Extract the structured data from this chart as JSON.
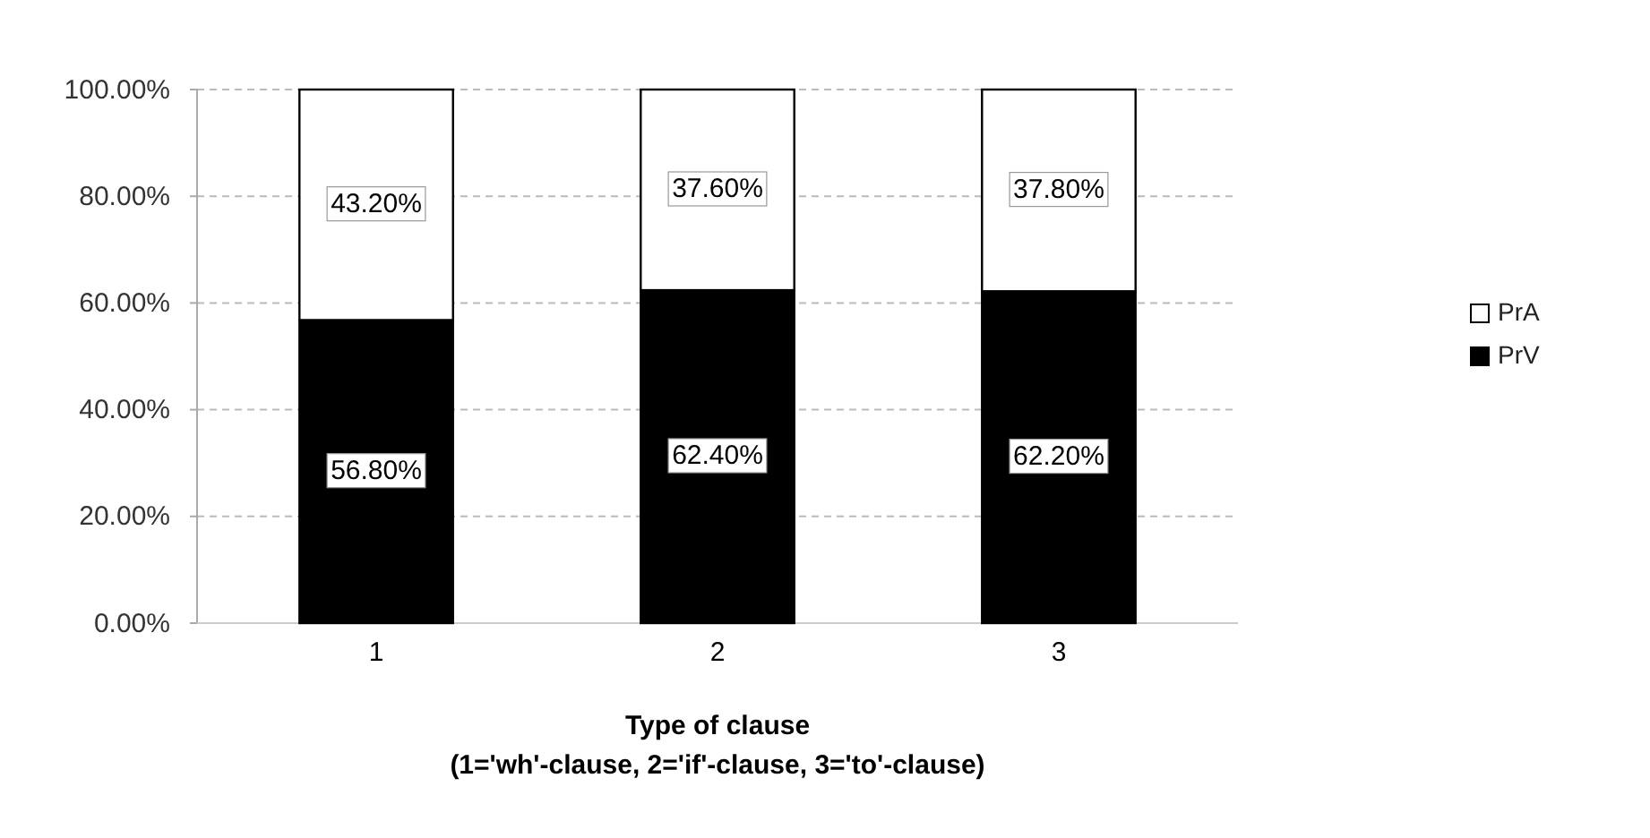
{
  "chart_data": {
    "type": "bar",
    "stacked": true,
    "categories": [
      "1",
      "2",
      "3"
    ],
    "series": [
      {
        "name": "PrV",
        "color": "#000000",
        "values": [
          56.8,
          62.4,
          62.2
        ],
        "value_labels": [
          "56.80%",
          "62.40%",
          "62.20%"
        ]
      },
      {
        "name": "PrA",
        "color": "#ffffff",
        "values": [
          43.2,
          37.6,
          37.8
        ],
        "value_labels": [
          "43.20%",
          "37.60%",
          "37.80%"
        ]
      }
    ],
    "ylim": [
      0,
      100
    ],
    "yticks": [
      {
        "value": 0,
        "label": "0.00%"
      },
      {
        "value": 20,
        "label": "20.00%"
      },
      {
        "value": 40,
        "label": "40.00%"
      },
      {
        "value": 60,
        "label": "60.00%"
      },
      {
        "value": 80,
        "label": "80.00%"
      },
      {
        "value": 100,
        "label": "100.00%"
      }
    ],
    "xlabel": "Type of clause\n(1='wh'-clause, 2='if'-clause, 3='to'-clause)",
    "grid": "y",
    "legend": "right"
  }
}
